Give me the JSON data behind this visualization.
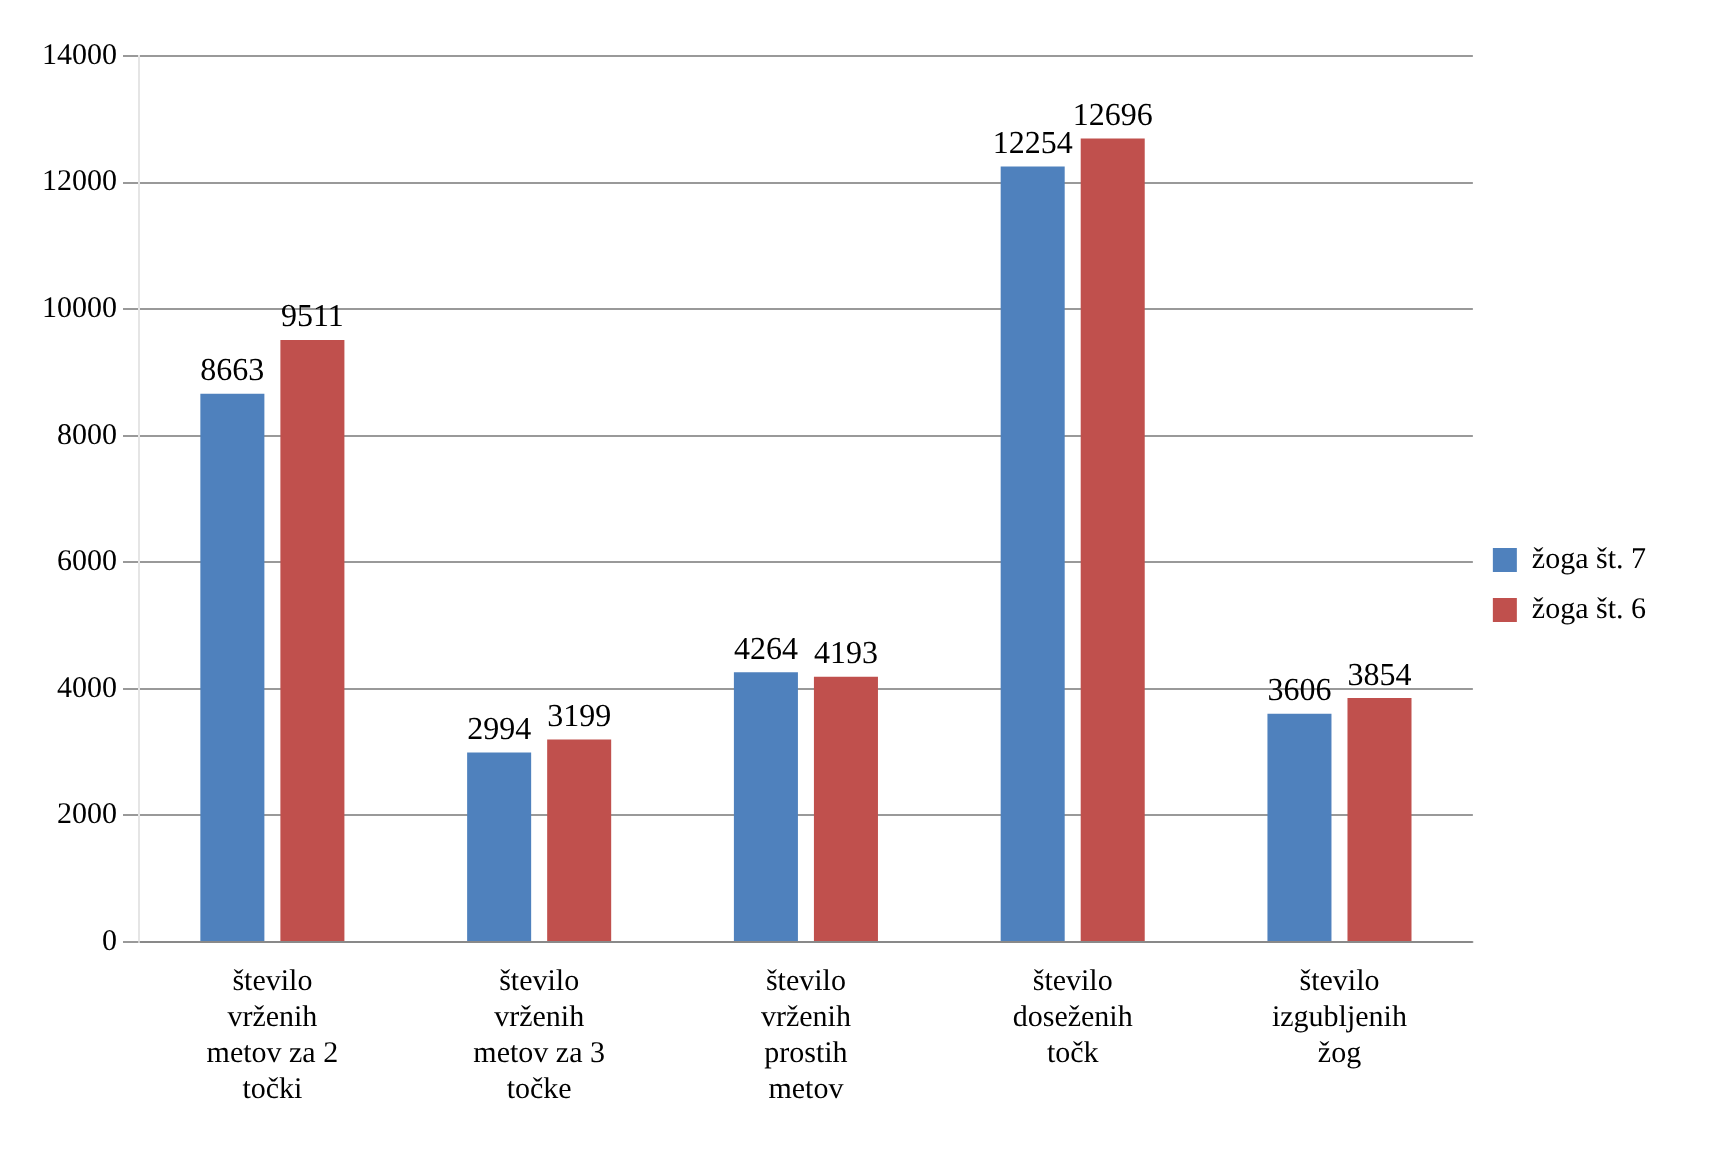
{
  "chart_data": {
    "type": "bar",
    "categories": [
      "število vrženih metov za 2 točki",
      "število vrženih metov za 3 točke",
      "število vrženih prostih metov",
      "število doseženih točk",
      "število izgubljenih žog"
    ],
    "series": [
      {
        "name": "žoga št. 7",
        "color": "#4f81bd",
        "values": [
          8663,
          2994,
          4264,
          12254,
          3606
        ]
      },
      {
        "name": "žoga št. 6",
        "color": "#c0504d",
        "values": [
          9511,
          3199,
          4193,
          12696,
          3854
        ]
      }
    ],
    "ylim": [
      0,
      14000
    ],
    "yticks": [
      0,
      2000,
      4000,
      6000,
      8000,
      10000,
      12000,
      14000
    ],
    "grid": "y",
    "legend": "right",
    "data_labels": true
  }
}
